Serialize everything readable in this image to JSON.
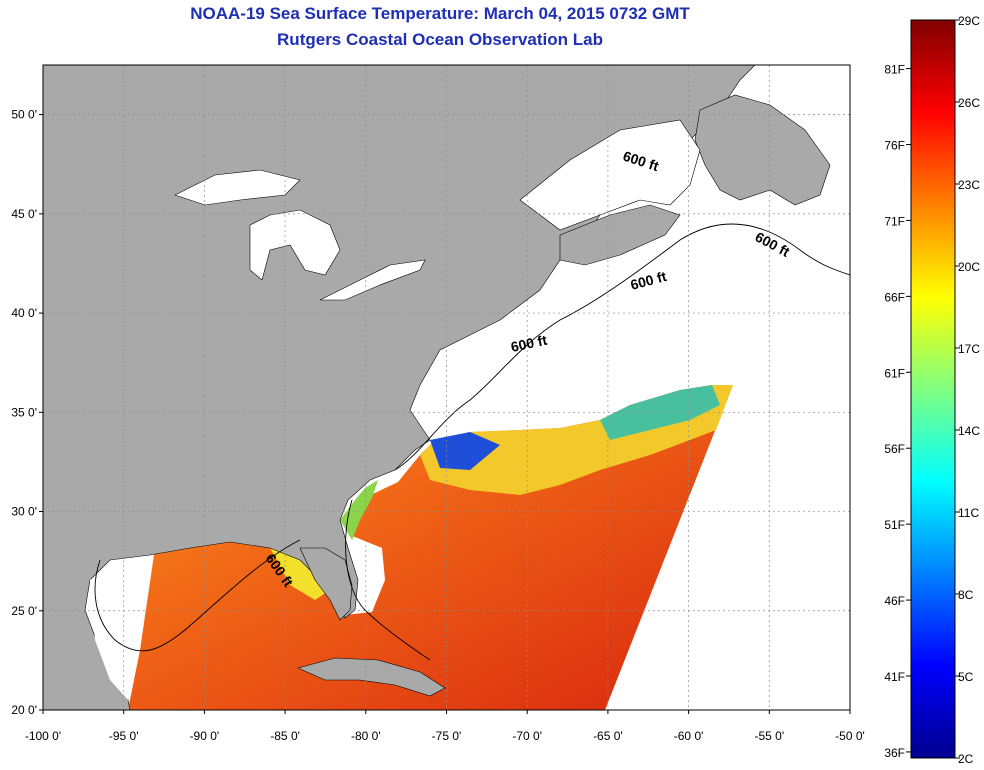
{
  "header": {
    "title": "NOAA-19 Sea Surface Temperature:  March 04, 2015 0732 GMT",
    "subtitle": "Rutgers Coastal Ocean Observation Lab"
  },
  "map": {
    "lon_range": [
      -100,
      -50
    ],
    "lat_range": [
      20,
      52.5
    ],
    "lat_ticks": [
      {
        "value": 20,
        "label": "20 0'"
      },
      {
        "value": 25,
        "label": "25 0'"
      },
      {
        "value": 30,
        "label": "30 0'"
      },
      {
        "value": 35,
        "label": "35 0'"
      },
      {
        "value": 40,
        "label": "40 0'"
      },
      {
        "value": 45,
        "label": "45 0'"
      },
      {
        "value": 50,
        "label": "50 0'"
      }
    ],
    "lon_ticks": [
      {
        "value": -100,
        "label": "-100 0'"
      },
      {
        "value": -95,
        "label": "-95 0'"
      },
      {
        "value": -90,
        "label": "-90 0'"
      },
      {
        "value": -85,
        "label": "-85 0'"
      },
      {
        "value": -80,
        "label": "-80 0'"
      },
      {
        "value": -75,
        "label": "-75 0'"
      },
      {
        "value": -70,
        "label": "-70 0'"
      },
      {
        "value": -65,
        "label": "-65 0'"
      },
      {
        "value": -60,
        "label": "-60 0'"
      },
      {
        "value": -55,
        "label": "-55 0'"
      },
      {
        "value": -50,
        "label": "-50 0'"
      }
    ],
    "contour_labels": [
      {
        "text": "600 ft"
      },
      {
        "text": "600 ft"
      },
      {
        "text": "600 ft"
      },
      {
        "text": "600 ft"
      },
      {
        "text": "600 ft"
      }
    ],
    "colors": {
      "land": "#a9a9a9",
      "no_data": "#ffffff",
      "grid": "#8c8c8c"
    }
  },
  "colorbar": {
    "colors": [
      "#00008f",
      "#0000ff",
      "#0080ff",
      "#00ffff",
      "#80ff80",
      "#ffff00",
      "#ff8000",
      "#ff0000",
      "#800000"
    ],
    "celsius_labels": [
      {
        "value": 2,
        "label": "2C"
      },
      {
        "value": 5,
        "label": "5C"
      },
      {
        "value": 8,
        "label": "8C"
      },
      {
        "value": 11,
        "label": "11C"
      },
      {
        "value": 14,
        "label": "14C"
      },
      {
        "value": 17,
        "label": "17C"
      },
      {
        "value": 20,
        "label": "20C"
      },
      {
        "value": 23,
        "label": "23C"
      },
      {
        "value": 26,
        "label": "26C"
      },
      {
        "value": 29,
        "label": "29C"
      }
    ],
    "fahrenheit_labels": [
      {
        "value": 36,
        "label": "36F"
      },
      {
        "value": 41,
        "label": "41F"
      },
      {
        "value": 46,
        "label": "46F"
      },
      {
        "value": 51,
        "label": "51F"
      },
      {
        "value": 56,
        "label": "56F"
      },
      {
        "value": 61,
        "label": "61F"
      },
      {
        "value": 66,
        "label": "66F"
      },
      {
        "value": 71,
        "label": "71F"
      },
      {
        "value": 76,
        "label": "76F"
      },
      {
        "value": 81,
        "label": "81F"
      }
    ]
  }
}
